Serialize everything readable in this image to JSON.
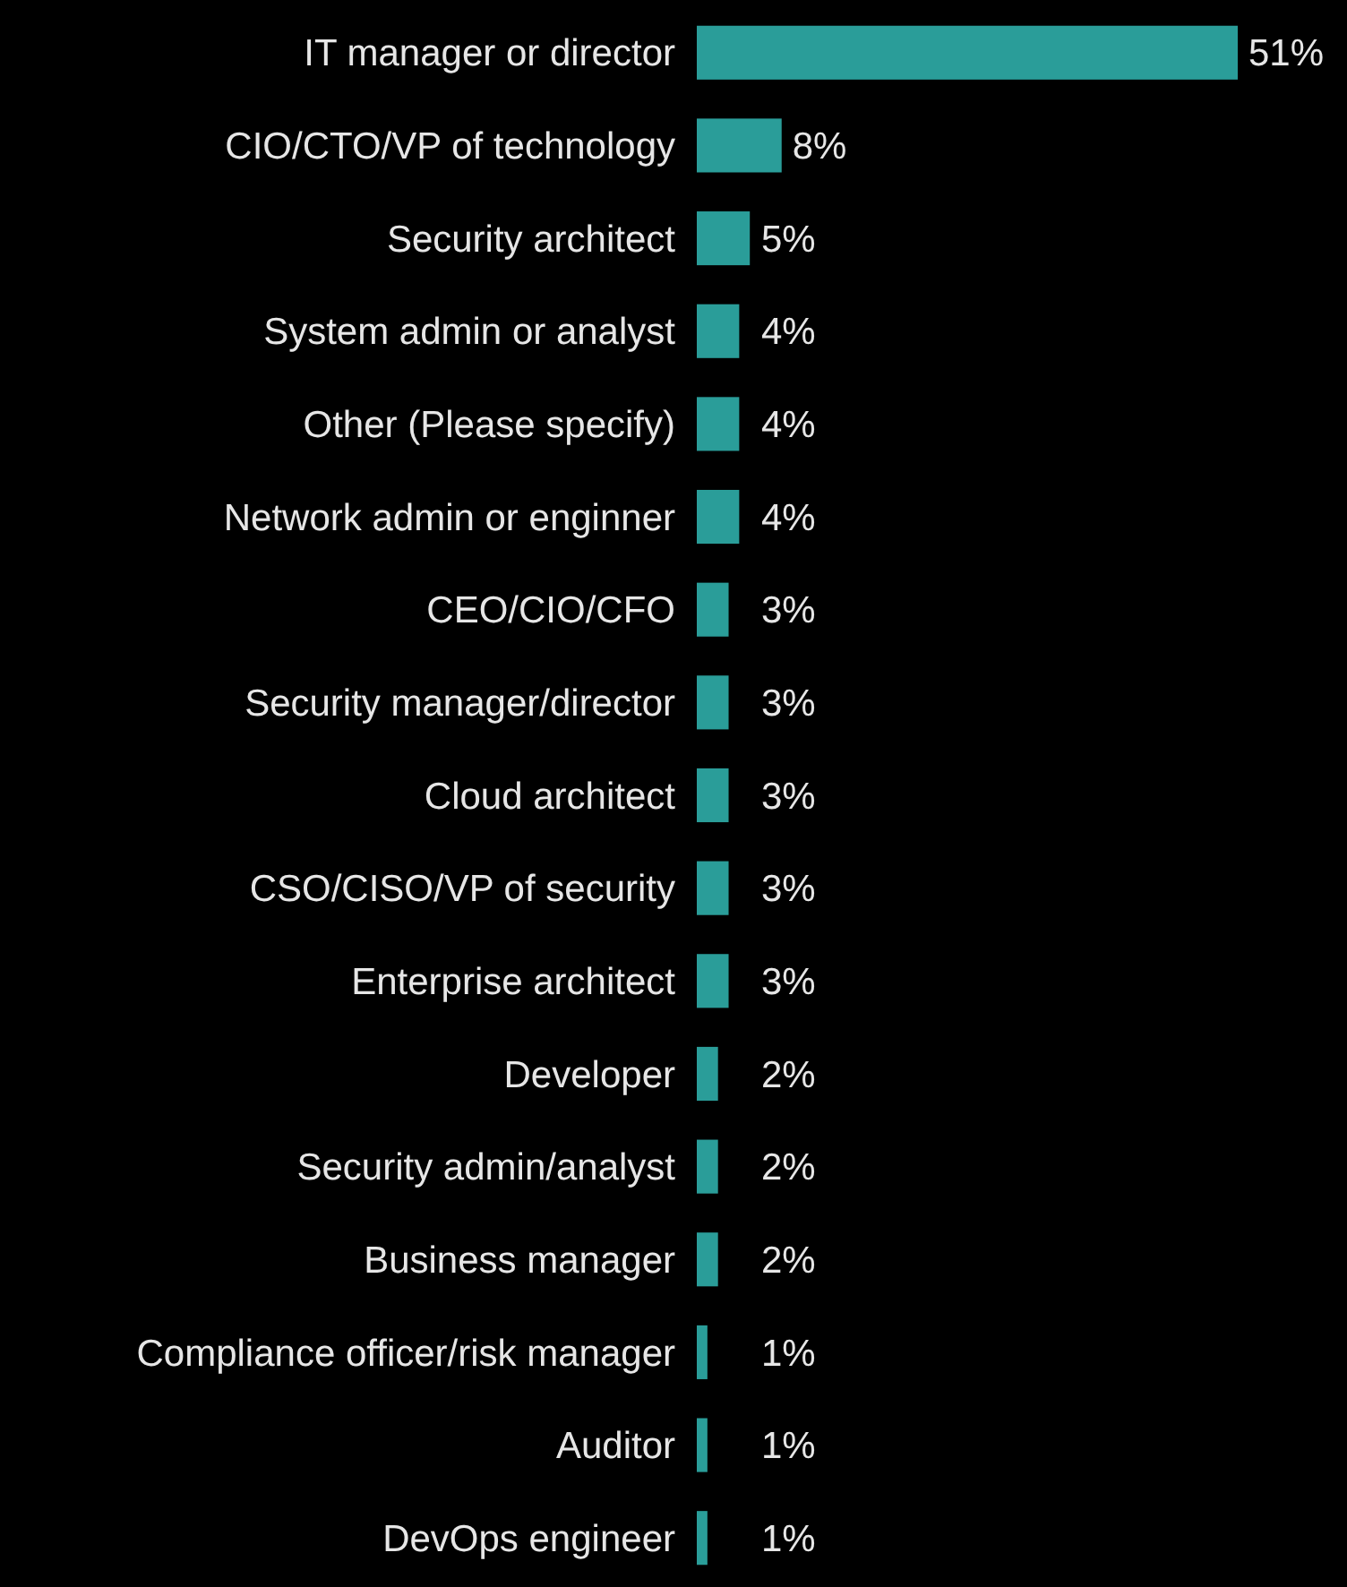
{
  "chart_data": {
    "type": "bar",
    "orientation": "horizontal",
    "categories": [
      "IT manager or director",
      "CIO/CTO/VP of technology",
      "Security architect",
      "System admin or analyst",
      "Other (Please specify)",
      "Network admin or enginner",
      "CEO/CIO/CFO",
      "Security manager/director",
      "Cloud architect",
      "CSO/CISO/VP of security",
      "Enterprise architect",
      "Developer",
      "Security admin/analyst",
      "Business manager",
      "Compliance officer/risk manager",
      "Auditor",
      "DevOps engineer"
    ],
    "values": [
      51,
      8,
      5,
      4,
      4,
      4,
      3,
      3,
      3,
      3,
      3,
      2,
      2,
      2,
      1,
      1,
      1
    ],
    "value_labels": [
      "51%",
      "8%",
      "5%",
      "4%",
      "4%",
      "4%",
      "3%",
      "3%",
      "3%",
      "3%",
      "3%",
      "2%",
      "2%",
      "2%",
      "1%",
      "1%",
      "1%"
    ],
    "color": "#2a9d99"
  }
}
